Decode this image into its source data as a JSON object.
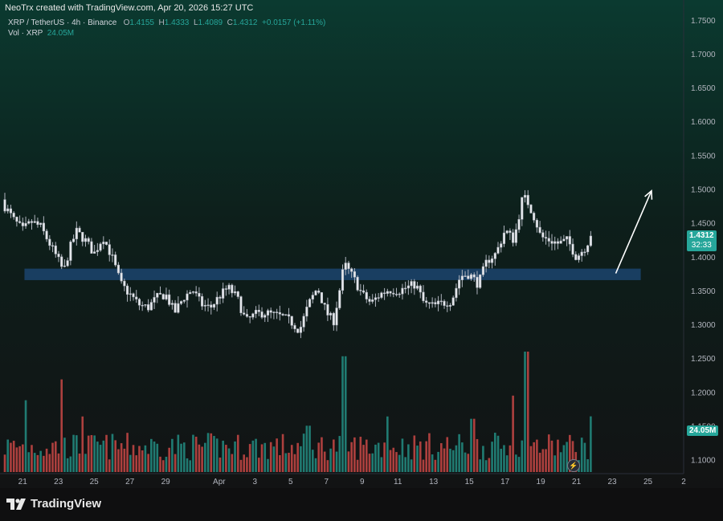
{
  "header": {
    "credit": "NeoTrx created with TradingView.com, Apr 20, 2026 15:27 UTC",
    "symbol": "XRP / TetherUS · 4h · Binance",
    "o_label": "O",
    "o_value": "1.4155",
    "h_label": "H",
    "h_value": "1.4333",
    "l_label": "L",
    "l_value": "1.4089",
    "c_label": "C",
    "c_value": "1.4312",
    "change": "+0.0157 (+1.11%)",
    "vol_label": "Vol · XRP",
    "vol_value": "24.05M"
  },
  "price_tag": {
    "price": "1.4312",
    "countdown": "32:33",
    "color": "#26a69a"
  },
  "volume_tag": {
    "value": "24.05M",
    "color": "#26a69a"
  },
  "footer": {
    "brand": "TradingView",
    "logo_icon": "tradingview-logo-icon"
  },
  "colors": {
    "up": "#26a69a",
    "down": "#ef5350",
    "zone": "#1e4a7a",
    "arrow": "#ffffff"
  },
  "chart_data": {
    "type": "candlestick",
    "ylim": [
      1.08,
      1.78
    ],
    "y_ticks": [
      "1.7500",
      "1.7000",
      "1.6500",
      "1.6000",
      "1.5500",
      "1.5000",
      "1.4500",
      "1.4000",
      "1.3500",
      "1.3000",
      "1.2500",
      "1.2000",
      "1.1500",
      "1.1000"
    ],
    "x_ticks": [
      {
        "label": "21",
        "day": 21
      },
      {
        "label": "23",
        "day": 23
      },
      {
        "label": "25",
        "day": 25
      },
      {
        "label": "27",
        "day": 27
      },
      {
        "label": "29",
        "day": 29
      },
      {
        "label": "Apr",
        "day": 32
      },
      {
        "label": "3",
        "day": 34
      },
      {
        "label": "5",
        "day": 36
      },
      {
        "label": "7",
        "day": 38
      },
      {
        "label": "9",
        "day": 40
      },
      {
        "label": "11",
        "day": 42
      },
      {
        "label": "13",
        "day": 44
      },
      {
        "label": "15",
        "day": 46
      },
      {
        "label": "17",
        "day": 48
      },
      {
        "label": "19",
        "day": 50
      },
      {
        "label": "21",
        "day": 52
      },
      {
        "label": "23",
        "day": 54
      },
      {
        "label": "25",
        "day": 56
      },
      {
        "label": "2",
        "day": 58
      }
    ],
    "xlim": [
      20.0,
      58.0
    ],
    "close_path": [
      [
        20.0,
        1.475
      ],
      [
        20.5,
        1.455
      ],
      [
        21.0,
        1.44
      ],
      [
        21.5,
        1.452
      ],
      [
        22.0,
        1.445
      ],
      [
        22.5,
        1.42
      ],
      [
        23.0,
        1.395
      ],
      [
        23.3,
        1.378
      ],
      [
        23.6,
        1.41
      ],
      [
        24.0,
        1.438
      ],
      [
        24.5,
        1.425
      ],
      [
        25.0,
        1.405
      ],
      [
        25.5,
        1.43
      ],
      [
        26.0,
        1.4
      ],
      [
        26.5,
        1.36
      ],
      [
        27.0,
        1.345
      ],
      [
        27.5,
        1.33
      ],
      [
        28.0,
        1.325
      ],
      [
        28.5,
        1.34
      ],
      [
        29.0,
        1.345
      ],
      [
        29.5,
        1.318
      ],
      [
        30.0,
        1.34
      ],
      [
        30.5,
        1.352
      ],
      [
        31.0,
        1.33
      ],
      [
        31.5,
        1.325
      ],
      [
        32.0,
        1.342
      ],
      [
        32.5,
        1.355
      ],
      [
        33.0,
        1.34
      ],
      [
        33.5,
        1.305
      ],
      [
        34.0,
        1.315
      ],
      [
        34.5,
        1.318
      ],
      [
        35.0,
        1.315
      ],
      [
        35.5,
        1.312
      ],
      [
        36.0,
        1.305
      ],
      [
        36.5,
        1.292
      ],
      [
        37.0,
        1.33
      ],
      [
        37.5,
        1.355
      ],
      [
        38.0,
        1.318
      ],
      [
        38.4,
        1.305
      ],
      [
        38.7,
        1.345
      ],
      [
        39.0,
        1.39
      ],
      [
        39.5,
        1.37
      ],
      [
        40.0,
        1.345
      ],
      [
        40.5,
        1.332
      ],
      [
        41.0,
        1.345
      ],
      [
        41.5,
        1.352
      ],
      [
        42.0,
        1.35
      ],
      [
        42.5,
        1.355
      ],
      [
        43.0,
        1.36
      ],
      [
        43.5,
        1.33
      ],
      [
        44.0,
        1.328
      ],
      [
        44.5,
        1.332
      ],
      [
        45.0,
        1.335
      ],
      [
        45.5,
        1.372
      ],
      [
        46.0,
        1.375
      ],
      [
        46.5,
        1.36
      ],
      [
        47.0,
        1.395
      ],
      [
        47.5,
        1.405
      ],
      [
        48.0,
        1.44
      ],
      [
        48.5,
        1.425
      ],
      [
        49.0,
        1.49
      ],
      [
        49.3,
        1.48
      ],
      [
        49.7,
        1.455
      ],
      [
        50.0,
        1.43
      ],
      [
        50.5,
        1.425
      ],
      [
        51.0,
        1.42
      ],
      [
        51.5,
        1.425
      ],
      [
        52.0,
        1.4
      ],
      [
        52.5,
        1.415
      ],
      [
        52.8,
        1.431
      ]
    ],
    "candle_count": 197,
    "last_close": 1.4312,
    "volume_max_millions": 52.0,
    "volume_spikes": [
      [
        23.2,
        40
      ],
      [
        39.0,
        50
      ],
      [
        49.2,
        52
      ],
      [
        48.4,
        33
      ],
      [
        41.4,
        24
      ],
      [
        21.2,
        31
      ],
      [
        24.4,
        24
      ],
      [
        37.0,
        20
      ],
      [
        46.2,
        23
      ]
    ],
    "support_zone": {
      "y_low": 1.366,
      "y_high": 1.383,
      "x_start": 21.1,
      "x_end": 55.6
    },
    "arrow": {
      "from": [
        54.2,
        1.376
      ],
      "to": [
        56.2,
        1.498
      ]
    }
  }
}
